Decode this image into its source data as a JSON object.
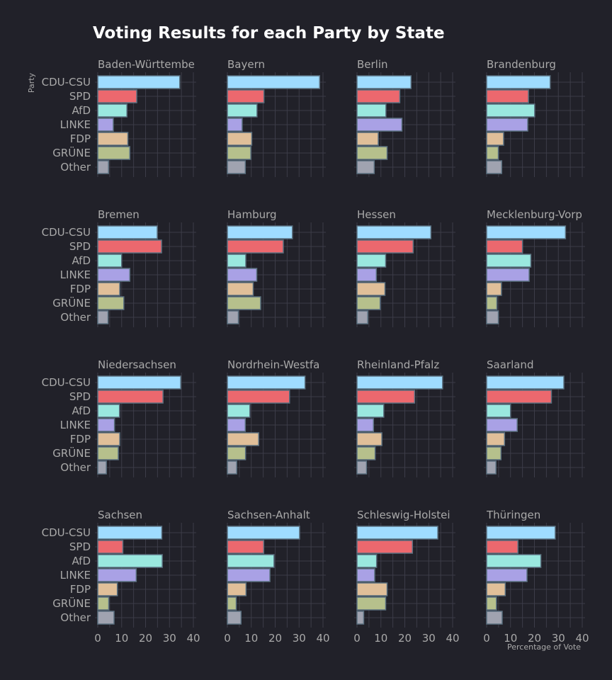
{
  "chart_data": {
    "type": "bar",
    "orientation": "horizontal",
    "title": "Voting Results for each Party by State",
    "xlabel": "Percentage of Vote",
    "ylabel": "Party",
    "xlim": [
      0,
      40
    ],
    "xticks": [
      0,
      10,
      20,
      30,
      40
    ],
    "grid": true,
    "categories": [
      "CDU-CSU",
      "SPD",
      "AfD",
      "LINKE",
      "FDP",
      "GRÜNE",
      "Other"
    ],
    "colors": {
      "CDU-CSU": "#9fdcff",
      "SPD": "#ec686e",
      "AfD": "#9ae8df",
      "LINKE": "#a9a1e5",
      "FDP": "#e0bf99",
      "GRÜNE": "#b6c08c",
      "Other": "#a0a3b0"
    },
    "bar_edge_color": "#5a7080",
    "panels": [
      {
        "state": "Baden-Württemberg",
        "display_title": "Baden-Württembe",
        "values": [
          34.3,
          16.3,
          12.2,
          6.5,
          12.6,
          13.4,
          4.5
        ]
      },
      {
        "state": "Bayern",
        "display_title": "Bayern",
        "values": [
          38.6,
          15.3,
          12.4,
          6.2,
          10.2,
          9.8,
          7.5
        ]
      },
      {
        "state": "Berlin",
        "display_title": "Berlin",
        "values": [
          22.6,
          17.9,
          12.1,
          18.8,
          8.9,
          12.6,
          7.2
        ]
      },
      {
        "state": "Brandenburg",
        "display_title": "Brandenburg",
        "values": [
          26.6,
          17.5,
          20.1,
          17.2,
          7.1,
          4.9,
          6.3
        ]
      },
      {
        "state": "Bremen",
        "display_title": "Bremen",
        "values": [
          24.9,
          26.7,
          10.0,
          13.4,
          9.2,
          10.9,
          4.3
        ]
      },
      {
        "state": "Hamburg",
        "display_title": "Hamburg",
        "values": [
          27.2,
          23.4,
          7.7,
          12.3,
          10.8,
          13.9,
          4.6
        ]
      },
      {
        "state": "Hessen",
        "display_title": "Hessen",
        "values": [
          30.9,
          23.5,
          12.0,
          8.1,
          11.7,
          9.7,
          4.5
        ]
      },
      {
        "state": "Mecklenburg-Vorpommern",
        "display_title": "Mecklenburg-Vorp",
        "values": [
          33.0,
          15.0,
          18.5,
          17.8,
          6.2,
          4.3,
          4.9
        ]
      },
      {
        "state": "Niedersachsen",
        "display_title": "Niedersachsen",
        "values": [
          34.7,
          27.3,
          9.1,
          7.0,
          9.2,
          8.6,
          3.6
        ]
      },
      {
        "state": "Nordrhein-Westfalen",
        "display_title": "Nordrhein-Westfa",
        "values": [
          32.5,
          26.0,
          9.4,
          7.5,
          13.1,
          7.6,
          3.9
        ]
      },
      {
        "state": "Rheinland-Pfalz",
        "display_title": "Rheinland-Pfalz",
        "values": [
          35.8,
          24.1,
          11.2,
          6.9,
          10.4,
          7.6,
          4.0
        ]
      },
      {
        "state": "Saarland",
        "display_title": "Saarland",
        "values": [
          32.3,
          27.1,
          10.0,
          12.8,
          7.5,
          6.0,
          3.9
        ]
      },
      {
        "state": "Sachsen",
        "display_title": "Sachsen",
        "values": [
          26.8,
          10.5,
          27.0,
          16.1,
          8.2,
          4.6,
          6.8
        ]
      },
      {
        "state": "Sachsen-Anhalt",
        "display_title": "Sachsen-Anhalt",
        "values": [
          30.2,
          15.2,
          19.5,
          17.8,
          7.8,
          3.7,
          5.7
        ]
      },
      {
        "state": "Schleswig-Holstein",
        "display_title": "Schleswig-Holstei",
        "values": [
          33.8,
          23.2,
          8.2,
          7.4,
          12.6,
          12.0,
          2.8
        ]
      },
      {
        "state": "Thüringen",
        "display_title": "Thüringen",
        "values": [
          28.7,
          13.1,
          22.7,
          16.9,
          7.8,
          4.1,
          6.5
        ]
      }
    ]
  }
}
